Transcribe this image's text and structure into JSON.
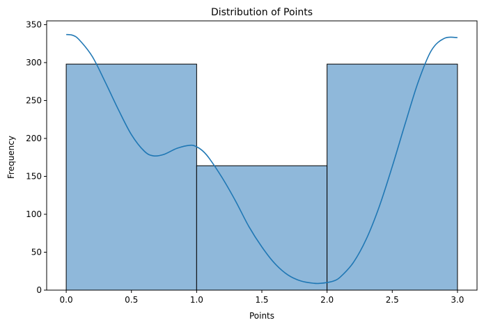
{
  "chart_data": {
    "type": "bar",
    "title": "Distribution of Points",
    "xlabel": "Points",
    "ylabel": "Frequency",
    "xlim": [
      -0.15,
      3.15
    ],
    "ylim": [
      0,
      355
    ],
    "x_ticks": [
      0.0,
      0.5,
      1.0,
      1.5,
      2.0,
      2.5,
      3.0
    ],
    "x_tick_labels": [
      "0.0",
      "0.5",
      "1.0",
      "1.5",
      "2.0",
      "2.5",
      "3.0"
    ],
    "y_ticks": [
      0,
      50,
      100,
      150,
      200,
      250,
      300,
      350
    ],
    "y_tick_labels": [
      "0",
      "50",
      "100",
      "150",
      "200",
      "250",
      "300",
      "350"
    ],
    "bins": [
      {
        "x0": 0.0,
        "x1": 1.0,
        "value": 298
      },
      {
        "x0": 1.0,
        "x1": 2.0,
        "value": 164
      },
      {
        "x0": 2.0,
        "x1": 3.0,
        "value": 298
      }
    ],
    "kde": {
      "x": [
        0.0,
        0.05,
        0.1,
        0.2,
        0.3,
        0.4,
        0.5,
        0.6,
        0.67,
        0.75,
        0.85,
        0.95,
        1.0,
        1.05,
        1.1,
        1.2,
        1.3,
        1.4,
        1.5,
        1.6,
        1.7,
        1.8,
        1.9,
        1.95,
        2.0,
        2.05,
        2.1,
        2.2,
        2.3,
        2.4,
        2.5,
        2.6,
        2.7,
        2.8,
        2.9,
        3.0
      ],
      "y": [
        337,
        336,
        330,
        308,
        274,
        238,
        205,
        183,
        177,
        179,
        187,
        191,
        189,
        183,
        173,
        147,
        117,
        84,
        57,
        35,
        20,
        12,
        9,
        9,
        10,
        12,
        17,
        36,
        67,
        110,
        163,
        220,
        275,
        316,
        332,
        333
      ]
    },
    "colors": {
      "bar_fill": "#8fb8da",
      "bar_edge": "#000000",
      "kde_line": "#1f77b4"
    },
    "grid": false,
    "legend": "none"
  }
}
